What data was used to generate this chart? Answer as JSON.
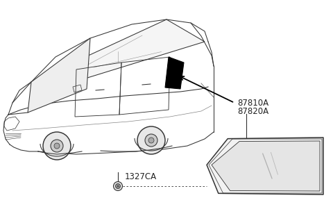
{
  "bg_color": "#ffffff",
  "label_87810A": "87810A",
  "label_87820A": "87820A",
  "label_1327CA": "1327CA",
  "label_color": "#222222",
  "line_color": "#333333",
  "arrow_color": "#000000",
  "font_size_labels": 8.5
}
